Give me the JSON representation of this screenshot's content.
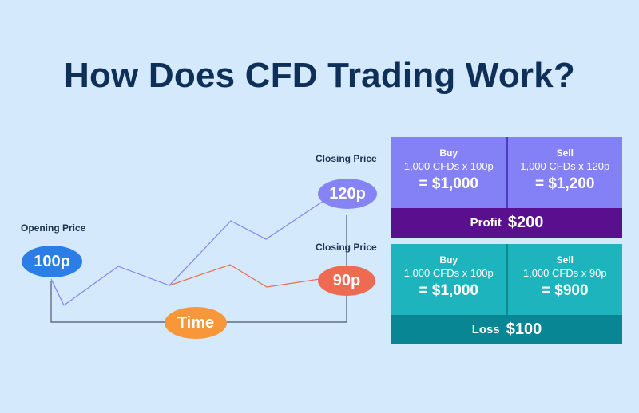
{
  "title": "How Does CFD Trading Work?",
  "diagram": {
    "opening_label": "Opening Price",
    "opening_price": "100p",
    "closing_label_up": "Closing Price",
    "closing_price_up": "120p",
    "closing_label_down": "Closing Price",
    "closing_price_down": "90p",
    "axis_label": "Time",
    "colors": {
      "background": "#d4e9fb",
      "opening": "#2c7de6",
      "closing_up": "#8683f5",
      "closing_down": "#ee6a52",
      "time": "#f7973a"
    }
  },
  "profit_example": {
    "buy": {
      "label": "Buy",
      "quantity": "1,000 CFDs x 100p",
      "total": "= $1,000"
    },
    "sell": {
      "label": "Sell",
      "quantity": "1,000 CFDs x 120p",
      "total": "= $1,200"
    },
    "result_label": "Profit",
    "result_value": "$200"
  },
  "loss_example": {
    "buy": {
      "label": "Buy",
      "quantity": "1,000 CFDs x 100p",
      "total": "= $1,000"
    },
    "sell": {
      "label": "Sell",
      "quantity": "1,000 CFDs x 90p",
      "total": "= $900"
    },
    "result_label": "Loss",
    "result_value": "$100"
  }
}
